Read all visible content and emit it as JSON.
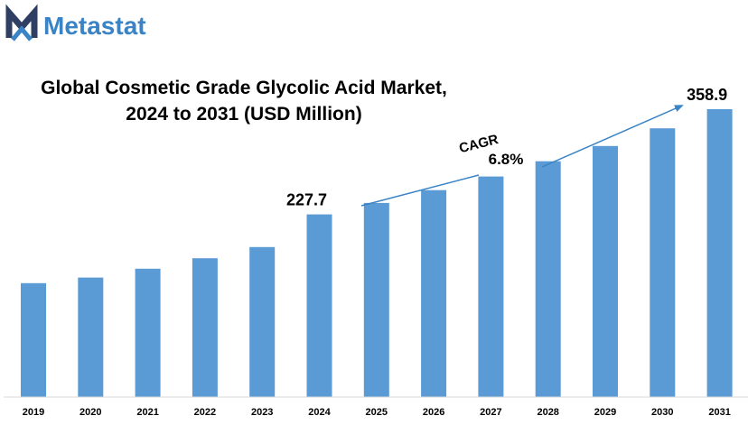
{
  "brand": {
    "name": "Metastat",
    "logo_color": "#2e3f63",
    "text_color": "#3a83c5"
  },
  "chart_data": {
    "type": "bar",
    "title": "Global Cosmetic Grade Glycolic Acid Market,",
    "subtitle": "2024 to 2031 (USD Million)",
    "categories": [
      "2019",
      "2020",
      "2021",
      "2022",
      "2023",
      "2024",
      "2025",
      "2026",
      "2027",
      "2028",
      "2029",
      "2030",
      "2031"
    ],
    "values": [
      142,
      149,
      160,
      173,
      187,
      227.7,
      242,
      258,
      275,
      294,
      313,
      335,
      358.9
    ],
    "ylim": [
      0,
      400
    ],
    "bar_color": "#5b9bd5",
    "grid": false,
    "data_labels": [
      {
        "category": "2024",
        "text": "227.7"
      },
      {
        "category": "2031",
        "text": "358.9"
      }
    ],
    "annotation": {
      "label": "CAGR",
      "value": "6.8%"
    }
  }
}
